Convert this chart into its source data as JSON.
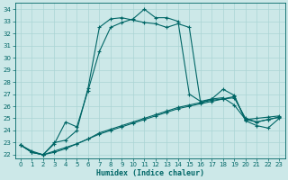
{
  "xlabel": "Humidex (Indice chaleur)",
  "xlim": [
    -0.5,
    23.5
  ],
  "ylim": [
    21.7,
    34.5
  ],
  "yticks": [
    22,
    23,
    24,
    25,
    26,
    27,
    28,
    29,
    30,
    31,
    32,
    33,
    34
  ],
  "xticks": [
    0,
    1,
    2,
    3,
    4,
    5,
    6,
    7,
    8,
    9,
    10,
    11,
    12,
    13,
    14,
    15,
    16,
    17,
    18,
    19,
    20,
    21,
    22,
    23
  ],
  "bg_color": "#cce8e8",
  "grid_color": "#aad4d4",
  "line_color": "#006666",
  "series": [
    [
      22.8,
      22.3,
      22.0,
      22.9,
      24.7,
      24.3,
      27.3,
      30.5,
      32.5,
      32.9,
      33.2,
      34.0,
      33.3,
      33.3,
      33.0,
      27.0,
      26.4,
      26.6,
      26.7,
      26.1,
      24.9,
      25.0,
      25.1,
      25.2
    ],
    [
      22.8,
      22.2,
      22.0,
      23.0,
      23.2,
      24.0,
      27.5,
      32.5,
      33.2,
      33.3,
      33.1,
      32.9,
      32.8,
      32.5,
      32.8,
      32.5,
      26.3,
      26.6,
      27.4,
      26.9,
      24.8,
      24.4,
      24.2,
      25.0
    ],
    [
      22.8,
      22.2,
      22.0,
      22.2,
      22.5,
      22.9,
      23.3,
      23.8,
      24.1,
      24.4,
      24.7,
      25.0,
      25.3,
      25.6,
      25.9,
      26.1,
      26.3,
      26.5,
      26.6,
      26.7,
      25.0,
      24.7,
      24.9,
      25.1
    ],
    [
      22.8,
      22.2,
      22.0,
      22.3,
      22.6,
      22.9,
      23.3,
      23.7,
      24.0,
      24.3,
      24.6,
      24.9,
      25.2,
      25.5,
      25.8,
      26.0,
      26.2,
      26.4,
      26.6,
      26.8,
      24.9,
      24.7,
      24.9,
      25.1
    ]
  ]
}
